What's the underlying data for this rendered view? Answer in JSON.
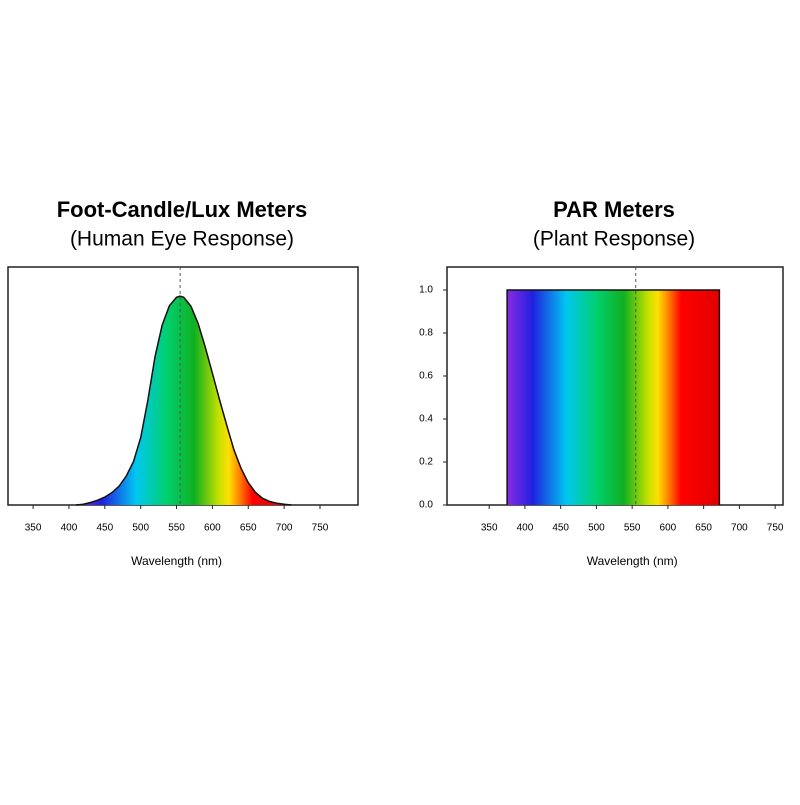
{
  "chart_data": [
    {
      "type": "area",
      "title": "Foot-Candle/Lux Meters",
      "subtitle": "(Human Eye Response)",
      "x_label": "Wavelength (nm)",
      "x": [
        410,
        420,
        430,
        440,
        450,
        460,
        470,
        480,
        490,
        500,
        510,
        520,
        530,
        540,
        550,
        555,
        560,
        570,
        580,
        590,
        600,
        610,
        620,
        630,
        640,
        650,
        660,
        670,
        680,
        690,
        700,
        710
      ],
      "values": [
        0,
        0.004,
        0.012,
        0.023,
        0.038,
        0.06,
        0.091,
        0.139,
        0.208,
        0.323,
        0.503,
        0.71,
        0.862,
        0.954,
        0.995,
        1.0,
        0.995,
        0.952,
        0.87,
        0.757,
        0.631,
        0.503,
        0.381,
        0.265,
        0.175,
        0.107,
        0.061,
        0.032,
        0.017,
        0.008,
        0.004,
        0
      ],
      "vline": 555,
      "xlim": [
        315,
        803
      ],
      "xticks": [
        350,
        400,
        450,
        500,
        550,
        600,
        650,
        700,
        750
      ],
      "ylim": [
        0,
        1.14
      ]
    },
    {
      "type": "area",
      "title": "PAR Meters",
      "subtitle": "(Plant Response)",
      "x_label": "Wavelength (nm)",
      "x": [
        375,
        375,
        672,
        672
      ],
      "values": [
        0,
        1,
        1,
        0
      ],
      "vline": 555,
      "xlim": [
        291,
        761
      ],
      "xticks": [
        350,
        400,
        450,
        500,
        550,
        600,
        650,
        700,
        750
      ],
      "ylim": [
        0,
        1.107
      ],
      "yticks": [
        {
          "value": 0,
          "label": "0.0"
        },
        {
          "value": 0.2,
          "label": "0.2"
        },
        {
          "value": 0.4,
          "label": "0.4"
        },
        {
          "value": 0.6,
          "label": "0.6"
        },
        {
          "value": 0.8,
          "label": "0.8"
        },
        {
          "value": 1,
          "label": "1.0"
        }
      ]
    }
  ]
}
